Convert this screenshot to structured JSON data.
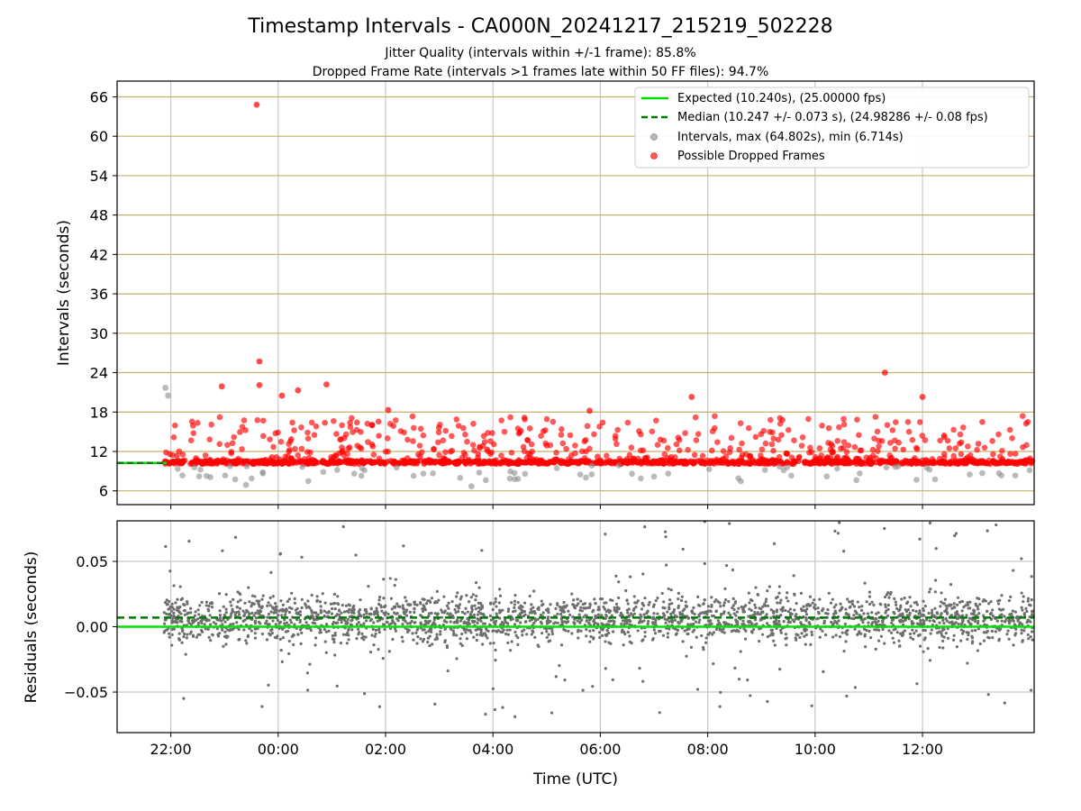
{
  "figure": {
    "title": "Timestamp Intervals - CA000N_20241217_215219_502228",
    "subtitle_1": "Jitter Quality (intervals within +/-1 frame): 85.8%",
    "subtitle_2": "Dropped Frame Rate (intervals >1 frames late within 50 FF files): 94.7%"
  },
  "colors": {
    "expected": "#00e000",
    "median": "#007a00",
    "intervals": "#8c8c8c",
    "dropped": "#ff0000",
    "hgrid_top": "#c8b06a",
    "vgrid": "#c8c8c8",
    "residual_points": "#6e6e6e"
  },
  "chart_data": [
    {
      "type": "scatter",
      "name": "intervals-panel",
      "ylabel": "Intervals (seconds)",
      "ylim": [
        3.9,
        68.4
      ],
      "yticks": [
        6,
        12,
        18,
        24,
        30,
        36,
        42,
        48,
        54,
        60,
        66
      ],
      "ytick_labels": [
        "6",
        "12",
        "18",
        "24",
        "30",
        "36",
        "42",
        "48",
        "54",
        "60",
        "66"
      ],
      "xlim_hours": [
        -3.0,
        14.08
      ],
      "grid": "on",
      "legend_position": "top-right",
      "legend": [
        "Expected (10.240s), (25.00000 fps)",
        "Median (10.247 +/- 0.073 s), (24.98286 +/- 0.08 fps)",
        "Intervals, max (64.802s), min (6.714s)",
        "Possible Dropped Frames"
      ],
      "expected_interval_s": 10.24,
      "median_interval_s": 10.247,
      "interval_max_s": 64.802,
      "interval_min_s": 6.714,
      "notable_points": [
        {
          "x": 23.6,
          "y": 64.8,
          "series": "dropped"
        },
        {
          "x": 23.65,
          "y": 25.7,
          "series": "dropped"
        },
        {
          "x": 23.65,
          "y": 22.1,
          "series": "dropped"
        },
        {
          "x": 22.95,
          "y": 21.9,
          "series": "dropped"
        },
        {
          "x": 21.9,
          "y": 21.7,
          "series": "intervals"
        },
        {
          "x": 21.95,
          "y": 20.5,
          "series": "intervals"
        },
        {
          "x": 0.07,
          "y": 20.5,
          "series": "dropped"
        },
        {
          "x": 0.37,
          "y": 21.3,
          "series": "dropped"
        },
        {
          "x": 0.9,
          "y": 22.2,
          "series": "dropped"
        },
        {
          "x": 1.75,
          "y": 16.0,
          "series": "dropped"
        },
        {
          "x": 2.05,
          "y": 18.3,
          "series": "dropped"
        },
        {
          "x": 3.6,
          "y": 6.7,
          "series": "intervals"
        },
        {
          "x": 5.8,
          "y": 18.2,
          "series": "dropped"
        },
        {
          "x": 7.7,
          "y": 20.3,
          "series": "dropped"
        },
        {
          "x": 11.3,
          "y": 24.0,
          "series": "dropped"
        },
        {
          "x": 12.0,
          "y": 20.3,
          "series": "dropped"
        },
        {
          "x": 23.4,
          "y": 6.9,
          "series": "intervals"
        }
      ]
    },
    {
      "type": "scatter",
      "name": "residuals-panel",
      "xlabel": "Time (UTC)",
      "ylabel": "Residuals (seconds)",
      "ylim": [
        -0.081,
        0.081
      ],
      "yticks": [
        -0.05,
        0.0,
        0.05
      ],
      "ytick_labels": [
        "−0.05",
        "0.00",
        "0.05"
      ],
      "xlim_hours": [
        -3.0,
        14.08
      ],
      "xticks_hours": [
        -2,
        0,
        2,
        4,
        6,
        8,
        10,
        12
      ],
      "xtick_labels": [
        "22:00",
        "00:00",
        "02:00",
        "04:00",
        "06:00",
        "08:00",
        "10:00",
        "12:00"
      ],
      "expected_residual": 0.0,
      "median_residual": 0.007,
      "grid": "on"
    }
  ]
}
